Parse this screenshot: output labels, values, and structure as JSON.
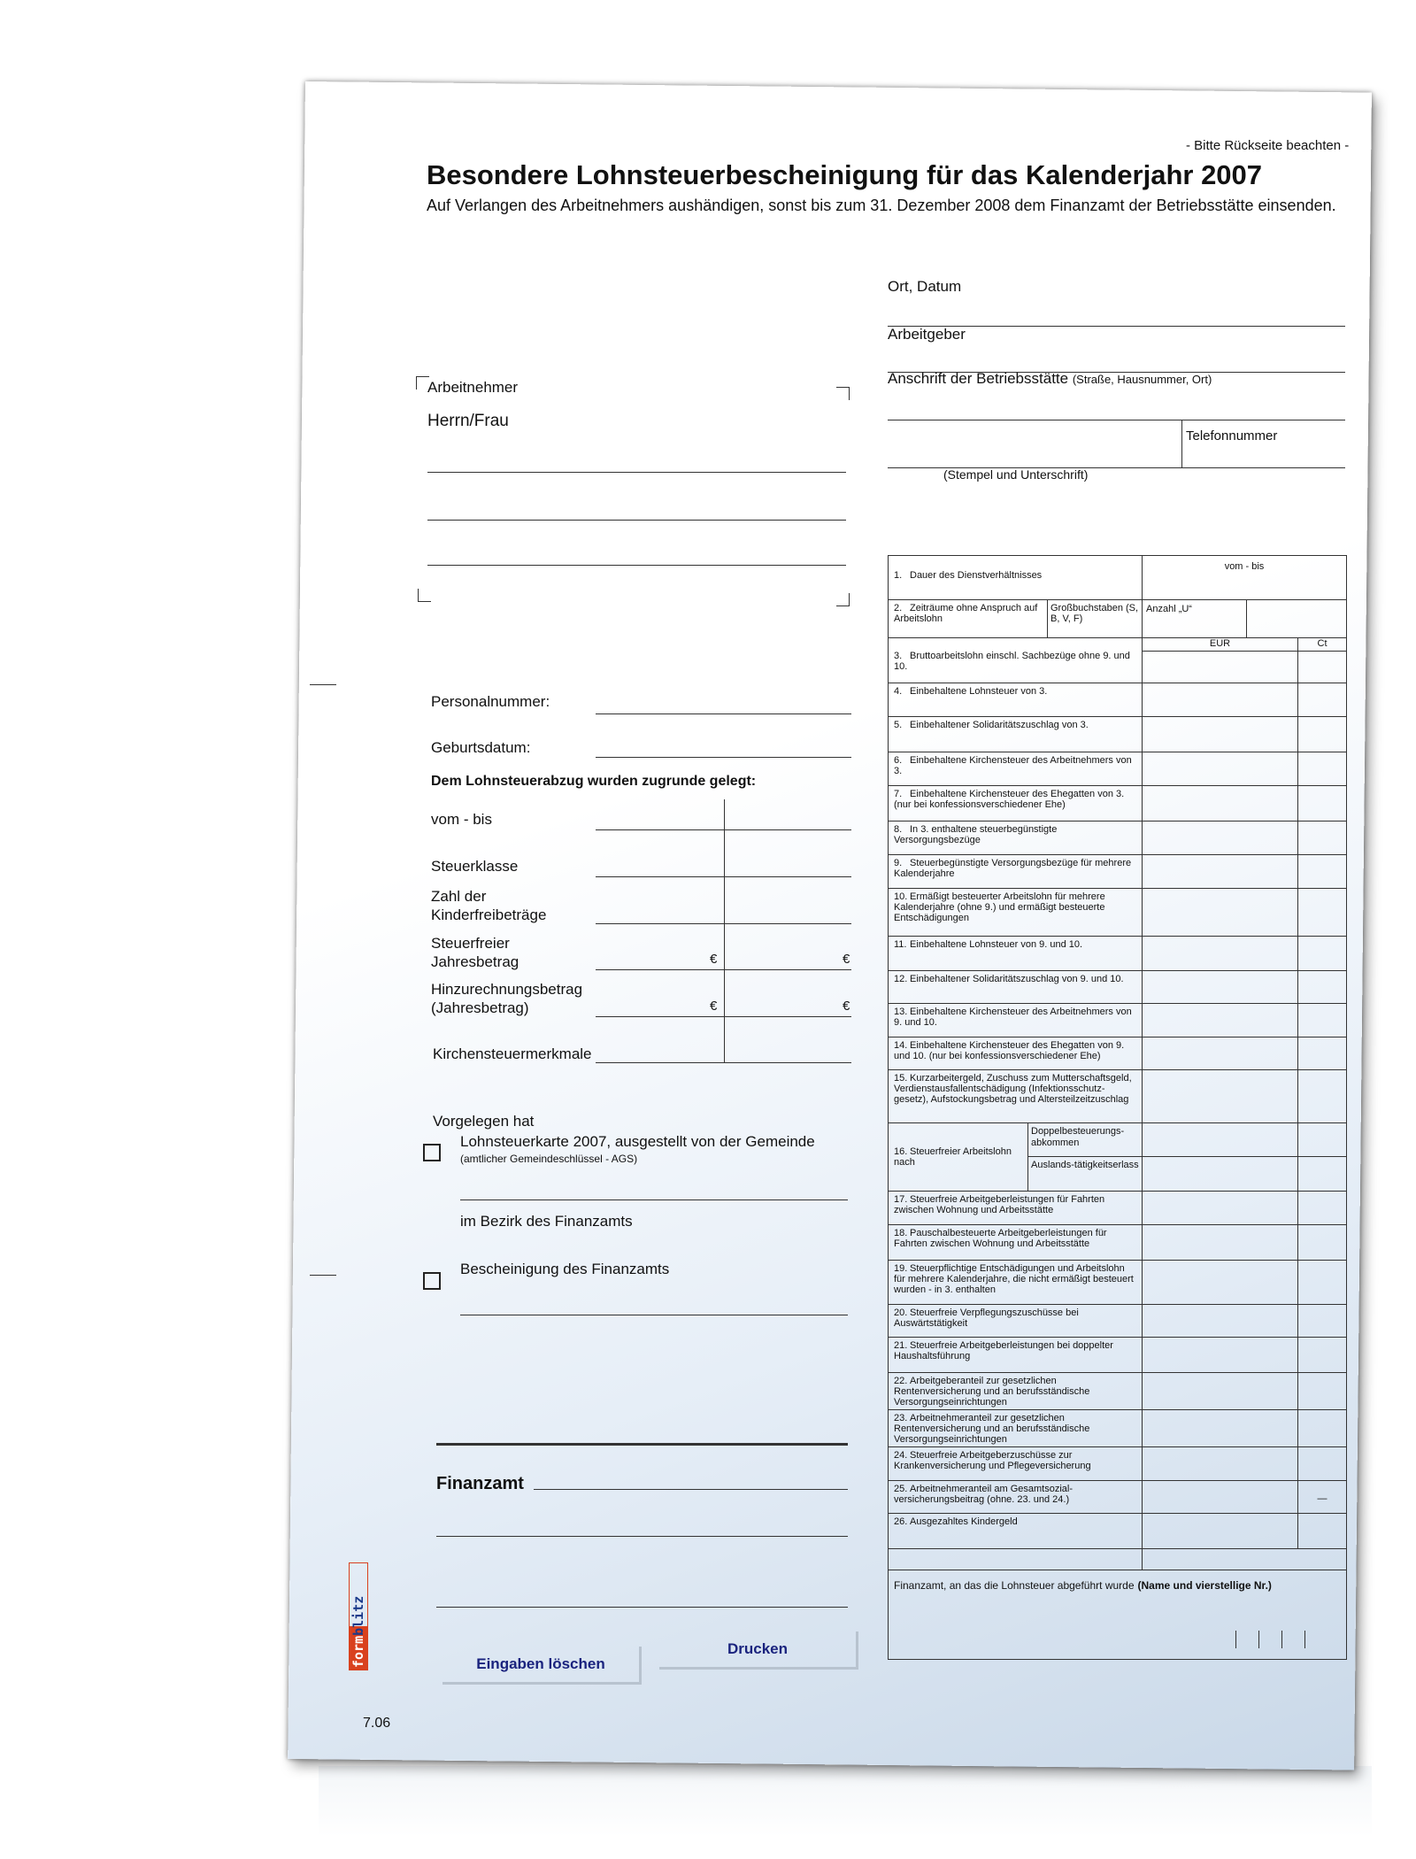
{
  "header": {
    "title": "Besondere Lohnsteuerbescheinigung für das Kalenderjahr 2007",
    "subtitle": "Auf Verlangen des Arbeitnehmers aushändigen, sonst bis zum 31. Dezember 2008 dem Finanzamt der Betriebsstätte einsenden.",
    "note": "- Bitte Rückseite beachten -"
  },
  "employer": {
    "place_date": "Ort, Datum",
    "employer": "Arbeitgeber",
    "address": "Anschrift der Betriebsstätte",
    "address_hint": "(Straße, Hausnummer, Ort)",
    "phone": "Telefonnummer",
    "stamp": "(Stempel und Unterschrift)"
  },
  "employee": {
    "label": "Arbeitnehmer",
    "salutation": "Herrn/Frau"
  },
  "fields": {
    "personnel_no": "Personalnummer:",
    "birth_date": "Geburtsdatum:",
    "basis_heading": "Dem Lohnsteuerabzug wurden zugrunde gelegt:",
    "period": "vom - bis",
    "tax_class": "Steuerklasse",
    "child_allowance_1": "Zahl der",
    "child_allowance_2": "Kinderfreibeträge",
    "tax_free_1": "Steuerfreier",
    "tax_free_2": "Jahresbetrag",
    "addition_1": "Hinzurechnungsbetrag",
    "addition_2": "(Jahresbetrag)",
    "church_tax": "Kirchensteuermerkmale",
    "currency": "€"
  },
  "presented": {
    "heading": "Vorgelegen hat",
    "option1": "Lohnsteuerkarte 2007, ausgestellt von der Gemeinde",
    "option1_hint": "(amtlicher Gemeindeschlüssel - AGS)",
    "district": "im Bezirk des Finanzamts",
    "option2": "Bescheinigung des Finanzamts",
    "option1_checked": false,
    "option2_checked": false
  },
  "tax_office": {
    "label": "Finanzamt"
  },
  "buttons": {
    "clear": "Eingaben löschen",
    "print": "Drucken"
  },
  "footer": {
    "version": "7.06",
    "logo_text": "formblitz",
    "logo_color": "#d9411e"
  },
  "table": {
    "period_header": "vom - bis",
    "letters_label": "Großbuchstaben (S, B, V, F)",
    "count_u": "Anzahl „U“",
    "eur": "EUR",
    "ct": "Ct",
    "sub16a": "Doppelbesteuerungs-abkommen",
    "sub16b": "Auslands-tätigkeitserlass",
    "dash": "—",
    "rows": [
      {
        "num": "1.",
        "label": "Dauer des Dienstverhältnisses"
      },
      {
        "num": "2.",
        "label": "Zeiträume ohne Anspruch auf Arbeitslohn"
      },
      {
        "num": "3.",
        "label": "Bruttoarbeitslohn einschl. Sachbezüge ohne 9. und 10."
      },
      {
        "num": "4.",
        "label": "Einbehaltene Lohnsteuer von 3."
      },
      {
        "num": "5.",
        "label": "Einbehaltener Solidaritätszuschlag von 3."
      },
      {
        "num": "6.",
        "label": "Einbehaltene Kirchensteuer des Arbeitnehmers von 3."
      },
      {
        "num": "7.",
        "label": "Einbehaltene Kirchensteuer des Ehegatten von 3. (nur bei konfessionsverschiedener Ehe)"
      },
      {
        "num": "8.",
        "label": "In 3. enthaltene steuerbegünstigte Versorgungsbezüge"
      },
      {
        "num": "9.",
        "label": "Steuerbegünstigte Versorgungsbezüge für mehrere Kalenderjahre"
      },
      {
        "num": "10.",
        "label": "Ermäßigt besteuerter Arbeitslohn für mehrere Kalenderjahre (ohne 9.) und ermäßigt besteuerte Entschädigungen"
      },
      {
        "num": "11.",
        "label": "Einbehaltene Lohnsteuer von 9. und 10."
      },
      {
        "num": "12.",
        "label": "Einbehaltener Solidaritätszuschlag von 9. und 10."
      },
      {
        "num": "13.",
        "label": "Einbehaltene Kirchensteuer des Arbeitnehmers von 9. und 10."
      },
      {
        "num": "14.",
        "label": "Einbehaltene Kirchensteuer des Ehegatten von 9. und 10. (nur bei konfessionsverschiedener Ehe)"
      },
      {
        "num": "15.",
        "label": "Kurzarbeitergeld, Zuschuss zum Mutterschaftsgeld, Verdienstausfallentschädigung (Infektionsschutz-gesetz), Aufstockungsbetrag und Altersteilzeitzuschlag"
      },
      {
        "num": "16.",
        "label": "Steuerfreier Arbeitslohn nach"
      },
      {
        "num": "17.",
        "label": "Steuerfreie Arbeitgeberleistungen für Fahrten zwischen Wohnung und Arbeitsstätte"
      },
      {
        "num": "18.",
        "label": "Pauschalbesteuerte Arbeitgeberleistungen für Fahrten zwischen Wohnung und Arbeitsstätte"
      },
      {
        "num": "19.",
        "label": "Steuerpflichtige Entschädigungen und Arbeitslohn für mehrere Kalenderjahre, die nicht ermäßigt besteuert wurden - in 3. enthalten"
      },
      {
        "num": "20.",
        "label": "Steuerfreie Verpflegungszuschüsse bei Auswärtstätigkeit"
      },
      {
        "num": "21.",
        "label": "Steuerfreie Arbeitgeberleistungen bei doppelter Haushaltsführung"
      },
      {
        "num": "22.",
        "label": "Arbeitgeberanteil zur gesetzlichen Rentenversicherung und an berufsständische Versorgungseinrichtungen"
      },
      {
        "num": "23.",
        "label": "Arbeitnehmeranteil zur gesetzlichen Rentenversicherung und an berufsständische Versorgungseinrichtungen"
      },
      {
        "num": "24.",
        "label": "Steuerfreie Arbeitgeberzuschüsse zur Krankenversicherung und Pflegeversicherung"
      },
      {
        "num": "25.",
        "label": "Arbeitnehmeranteil am Gesamtsozial-versicherungsbeitrag (ohne. 23. und 24.)"
      },
      {
        "num": "26.",
        "label": "Ausgezahltes Kindergeld"
      }
    ],
    "footer_label": "Finanzamt, an das die Lohnsteuer abgeführt wurde",
    "footer_hint": "(Name und vierstellige Nr.)"
  }
}
